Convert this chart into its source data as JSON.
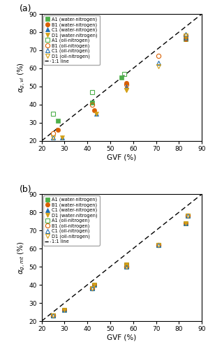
{
  "panel_a": {
    "water_nitrogen": {
      "A1": {
        "gvf": [
          27,
          42,
          55,
          83
        ],
        "y": [
          31,
          41,
          55,
          76
        ]
      },
      "B1": {
        "gvf": [
          27,
          43,
          57,
          83
        ],
        "y": [
          26,
          37,
          52,
          76
        ]
      },
      "C1": {
        "gvf": [
          29,
          44,
          57,
          83
        ],
        "y": [
          22,
          35,
          50,
          77
        ]
      },
      "D1": {
        "gvf": [
          29,
          44,
          57,
          83
        ],
        "y": [
          22,
          35,
          48,
          77
        ]
      }
    },
    "oil_nitrogen": {
      "A1": {
        "gvf": [
          25,
          42,
          56
        ],
        "y": [
          35,
          47,
          57
        ]
      },
      "B1": {
        "gvf": [
          25,
          42,
          57,
          71,
          83
        ],
        "y": [
          24,
          40,
          51,
          67,
          78
        ]
      },
      "C1": {
        "gvf": [
          25,
          71,
          83
        ],
        "y": [
          22,
          63,
          79
        ]
      },
      "D1": {
        "gvf": [
          25,
          57,
          71,
          83
        ],
        "y": [
          22,
          48,
          61,
          78
        ]
      }
    }
  },
  "panel_b": {
    "water_nitrogen": {
      "A1": {
        "gvf": [
          30,
          43,
          57,
          83
        ],
        "y": [
          26,
          40,
          51,
          74
        ]
      },
      "B1": {
        "gvf": [
          30,
          43,
          57,
          83
        ],
        "y": [
          26,
          40,
          51,
          74
        ]
      },
      "C1": {
        "gvf": [
          30,
          43,
          57,
          83
        ],
        "y": [
          26,
          40,
          51,
          74
        ]
      },
      "D1": {
        "gvf": [
          30,
          43,
          57,
          83
        ],
        "y": [
          26,
          40,
          51,
          74
        ]
      }
    },
    "oil_nitrogen": {
      "A1": {
        "gvf": [
          25,
          42,
          57,
          71,
          84
        ],
        "y": [
          23,
          38,
          50,
          62,
          78
        ]
      },
      "B1": {
        "gvf": [
          25,
          42,
          57,
          71,
          84
        ],
        "y": [
          23,
          38,
          50,
          62,
          78
        ]
      },
      "C1": {
        "gvf": [
          25,
          42,
          57,
          71,
          84
        ],
        "y": [
          23,
          38,
          50,
          62,
          78
        ]
      },
      "D1": {
        "gvf": [
          25,
          42,
          57,
          71,
          84
        ],
        "y": [
          23,
          38,
          50,
          62,
          78
        ]
      }
    }
  },
  "colors": {
    "A1": "#4daf4a",
    "B1": "#d95f02",
    "C1": "#1f6fb2",
    "D1": "#d4a017"
  },
  "xlim": [
    20,
    90
  ],
  "ylim": [
    20,
    90
  ],
  "xticks": [
    20,
    30,
    40,
    50,
    60,
    70,
    80,
    90
  ],
  "yticks": [
    20,
    30,
    40,
    50,
    60,
    70,
    80,
    90
  ],
  "xlabel": "GVF (%)",
  "ylabel_a": "$\\alpha_{g,vi}$ (%)",
  "ylabel_b": "$\\alpha_{g,mt}$ (%)",
  "panel_labels": [
    "(a)",
    "(b)"
  ],
  "legend_entries_water": [
    "A1 (water-nitrogen)",
    "B1 (water-nitrogen)",
    "C1 (water-nitrogen)",
    "D1 (water-nitrogen)"
  ],
  "legend_entries_oil": [
    "A1 (oil-nitrogen)",
    "B1 (oil-nitrogen)",
    "C1 (oil-nitrogen)",
    "D1 (oil-nitrogen)"
  ],
  "legend_entry_line": "1:1 line"
}
